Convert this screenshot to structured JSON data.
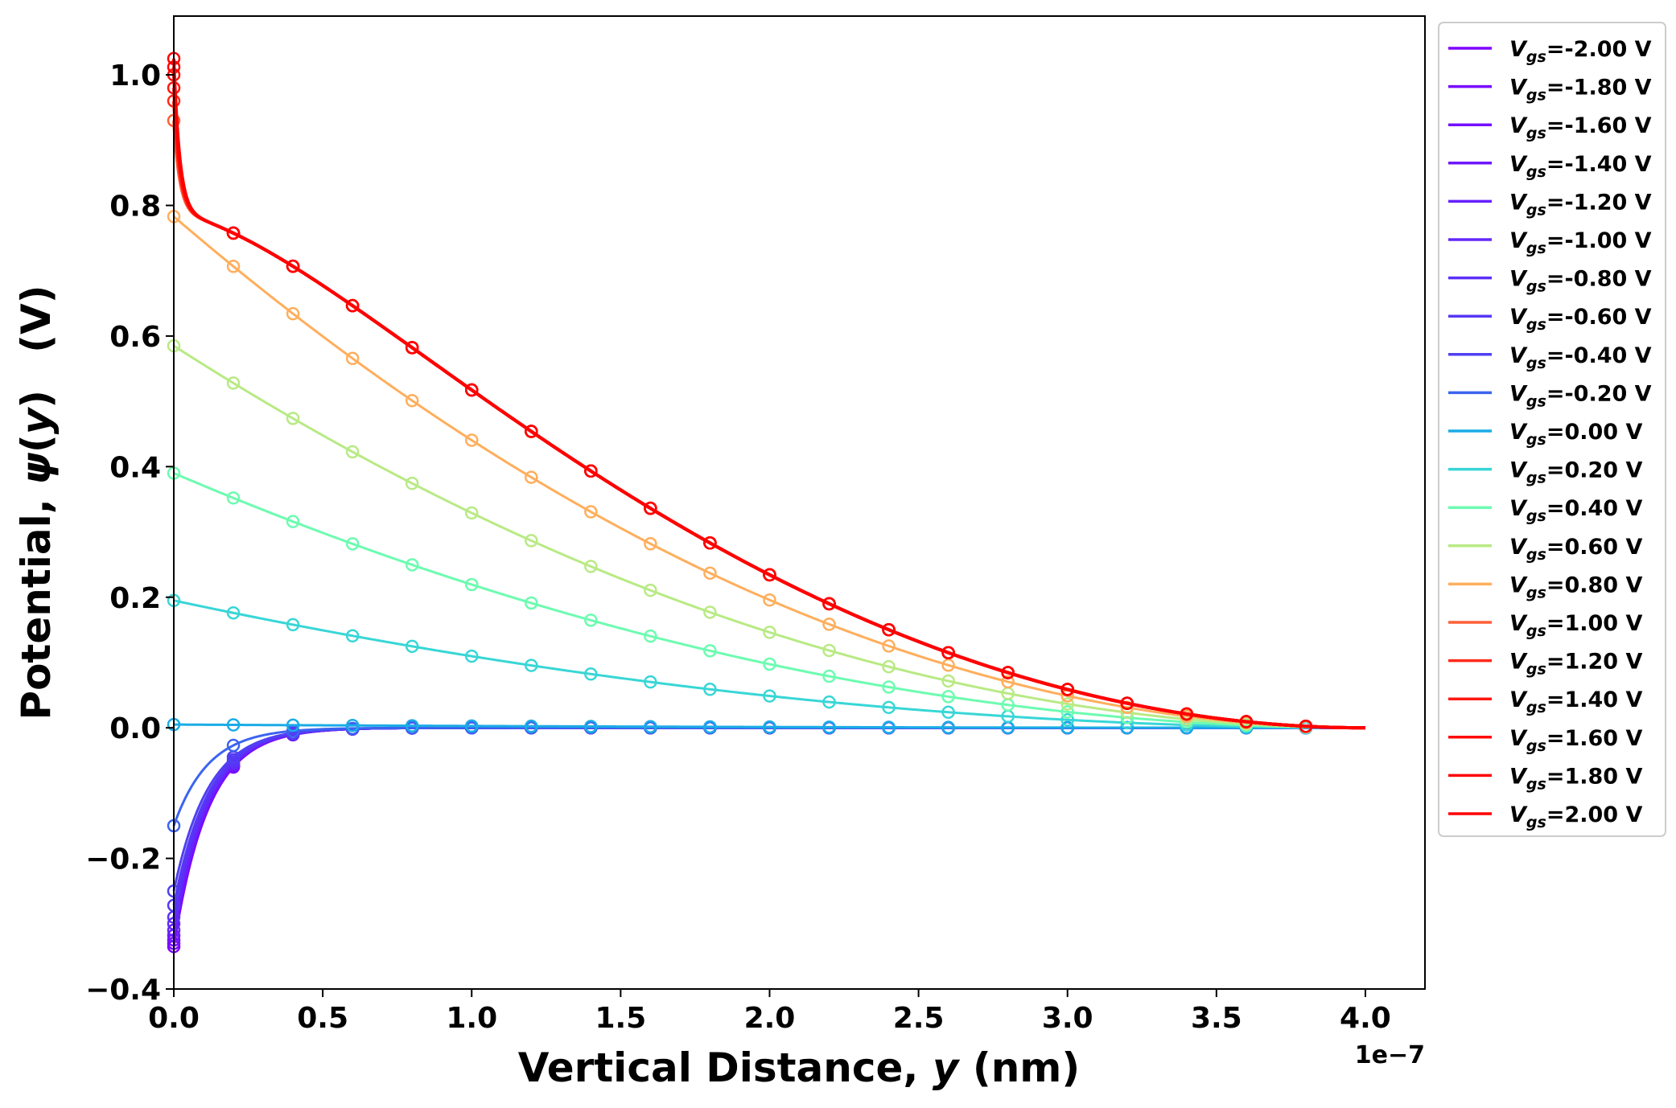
{
  "chart_data": {
    "type": "line",
    "title": "",
    "xlabel_parts": [
      "Vertical Distance, ",
      "y",
      " (nm)"
    ],
    "ylabel_parts": [
      "Potential, ",
      "ψ",
      "(",
      "y",
      ")",
      "(V)"
    ],
    "x_offset_label": "1e−7",
    "xlim": [
      0.0,
      4.2
    ],
    "ylim": [
      -0.4,
      1.09
    ],
    "x_unit_multiplier": 1e-07,
    "xticks": [
      0.0,
      0.5,
      1.0,
      1.5,
      2.0,
      2.5,
      3.0,
      3.5,
      4.0
    ],
    "xtick_labels": [
      "0.0",
      "0.5",
      "1.0",
      "1.5",
      "2.0",
      "2.5",
      "3.0",
      "3.5",
      "4.0"
    ],
    "yticks": [
      -0.4,
      -0.2,
      0.0,
      0.2,
      0.4,
      0.6,
      0.8,
      1.0
    ],
    "ytick_labels": [
      "−0.4",
      "−0.2",
      "0.0",
      "0.2",
      "0.4",
      "0.6",
      "0.8",
      "1.0"
    ],
    "grid": false,
    "legend_position": "outside-right-top",
    "legend_label_prefix": "V",
    "legend_label_subscript": "gs",
    "marker_x": [
      0.0,
      0.2,
      0.4,
      0.6,
      0.8,
      1.0,
      1.2,
      1.4,
      1.6,
      1.8,
      2.0,
      2.2,
      2.4,
      2.6,
      2.8,
      3.0,
      3.2,
      3.4,
      3.6,
      3.8
    ],
    "series": [
      {
        "name": "=-2.00 V",
        "color": "#8000ff",
        "surface": -0.335
      },
      {
        "name": "=-1.80 V",
        "color": "#7a08ff",
        "surface": -0.33
      },
      {
        "name": "=-1.60 V",
        "color": "#7410fe",
        "surface": -0.325
      },
      {
        "name": "=-1.40 V",
        "color": "#6e18fd",
        "surface": -0.318
      },
      {
        "name": "=-1.20 V",
        "color": "#6820fc",
        "surface": -0.31
      },
      {
        "name": "=-1.00 V",
        "color": "#6228fa",
        "surface": -0.3
      },
      {
        "name": "=-0.80 V",
        "color": "#5c30f8",
        "surface": -0.29
      },
      {
        "name": "=-0.60 V",
        "color": "#5638f5",
        "surface": -0.272
      },
      {
        "name": "=-0.40 V",
        "color": "#5040f2",
        "surface": -0.25
      },
      {
        "name": "=-0.20 V",
        "color": "#3c64ef",
        "surface": -0.15
      },
      {
        "name": "=0.00 V",
        "color": "#1aace6",
        "surface": 0.005
      },
      {
        "name": "=0.20 V",
        "color": "#38d6d6",
        "surface": 0.195
      },
      {
        "name": "=0.40 V",
        "color": "#6cfcb0",
        "surface": 0.39
      },
      {
        "name": "=0.60 V",
        "color": "#b8ea84",
        "surface": 0.585
      },
      {
        "name": "=0.80 V",
        "color": "#ffae5c",
        "surface": 0.783
      },
      {
        "name": "=1.00 V",
        "color": "#ff5f3a",
        "surface": 0.93
      },
      {
        "name": "=1.20 V",
        "color": "#ff2a18",
        "surface": 0.96
      },
      {
        "name": "=1.40 V",
        "color": "#ff1810",
        "surface": 0.98
      },
      {
        "name": "=1.60 V",
        "color": "#ff0c08",
        "surface": 1.0
      },
      {
        "name": "=1.80 V",
        "color": "#ff0404",
        "surface": 1.012
      },
      {
        "name": "=2.00 V",
        "color": "#ff0000",
        "surface": 1.025
      }
    ]
  }
}
